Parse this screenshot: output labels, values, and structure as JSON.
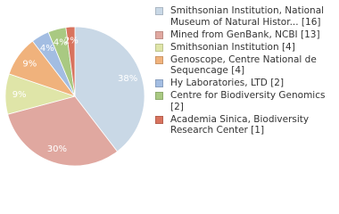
{
  "chart_data": {
    "type": "pie",
    "categories": [
      "Smithsonian Institution, National Museum of Natural Histor... [16]",
      "Mined from GenBank, NCBI [13]",
      "Smithsonian Institution [4]",
      "Genoscope, Centre National de Sequencage [4]",
      "Hy Laboratories, LTD [2]",
      "Centre for Biodiversity Genomics [2]",
      "Academia Sinica, Biodiversity Research Center [1]"
    ],
    "values": [
      38,
      30,
      9,
      9,
      4,
      4,
      2
    ],
    "value_labels": [
      "38%",
      "30%",
      "9%",
      "9%",
      "4%",
      "4%",
      "2%"
    ],
    "colors": [
      "#c9d8e6",
      "#e0a8a0",
      "#dfe5a8",
      "#f0b27c",
      "#a3bde2",
      "#a9c982",
      "#d8735e"
    ]
  }
}
